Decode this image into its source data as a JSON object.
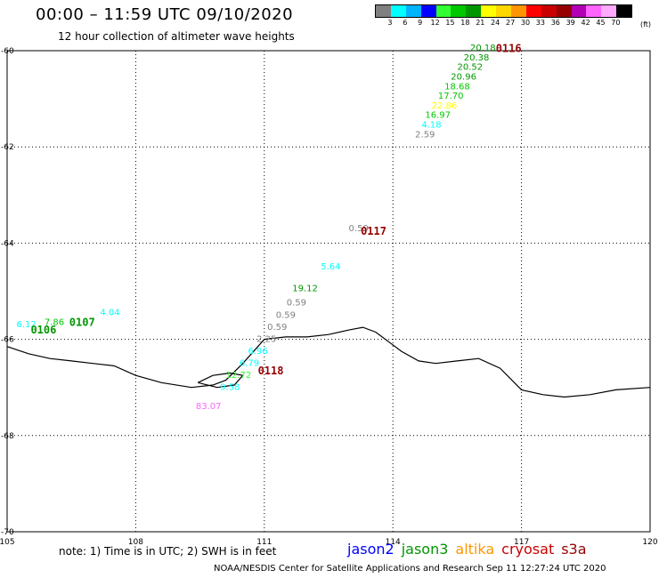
{
  "header": {
    "title": "00:00 – 11:59 UTC 09/10/2020",
    "subtitle": "12 hour collection of altimeter wave heights"
  },
  "legend": {
    "colors": [
      "#808080",
      "#00ffff",
      "#00b4ff",
      "#0000ff",
      "#32ff32",
      "#00c800",
      "#009600",
      "#ffff00",
      "#ffd700",
      "#ff9600",
      "#ff0000",
      "#c80000",
      "#960000",
      "#b400b4",
      "#ff64ff",
      "#ffaaff",
      "#000000"
    ],
    "labels": [
      "3",
      "6",
      "9",
      "12",
      "15",
      "18",
      "21",
      "24",
      "27",
      "30",
      "33",
      "36",
      "39",
      "42",
      "45",
      "70"
    ],
    "unit": "(ft)"
  },
  "chart_data": {
    "type": "scatter",
    "x_range": [
      105,
      120
    ],
    "y_range": [
      -60,
      -70
    ],
    "x_ticks": [
      105,
      108,
      111,
      114,
      117,
      120
    ],
    "y_ticks": [
      -60,
      -62,
      -64,
      -66,
      -68,
      -70
    ],
    "x_tick_labels": [
      "105",
      "108",
      "111",
      "114",
      "117",
      "120"
    ],
    "y_tick_labels": [
      "-60",
      "-62",
      "-64",
      "-66",
      "-68",
      "-70"
    ],
    "grid": true,
    "wave_heights": [
      {
        "lon": 116.1,
        "lat": -60.0,
        "value": "20.18",
        "color": "#009600"
      },
      {
        "lon": 115.95,
        "lat": -60.2,
        "value": "20.38",
        "color": "#009600"
      },
      {
        "lon": 115.8,
        "lat": -60.4,
        "value": "20.52",
        "color": "#009600"
      },
      {
        "lon": 115.65,
        "lat": -60.6,
        "value": "20.96",
        "color": "#009600"
      },
      {
        "lon": 115.5,
        "lat": -60.8,
        "value": "18.68",
        "color": "#00c800"
      },
      {
        "lon": 115.35,
        "lat": -61.0,
        "value": "17.70",
        "color": "#00c800"
      },
      {
        "lon": 115.2,
        "lat": -61.2,
        "value": "22.86",
        "color": "#ffff00"
      },
      {
        "lon": 115.05,
        "lat": -61.4,
        "value": "16.97",
        "color": "#00c800"
      },
      {
        "lon": 114.9,
        "lat": -61.6,
        "value": "4.18",
        "color": "#00ffff"
      },
      {
        "lon": 114.75,
        "lat": -61.8,
        "value": "2.59",
        "color": "#808080"
      },
      {
        "lon": 113.2,
        "lat": -63.75,
        "value": "0.59",
        "color": "#808080"
      },
      {
        "lon": 112.55,
        "lat": -64.55,
        "value": "5.64",
        "color": "#00ffff"
      },
      {
        "lon": 111.95,
        "lat": -65.0,
        "value": "19.12",
        "color": "#009600"
      },
      {
        "lon": 111.75,
        "lat": -65.3,
        "value": "0.59",
        "color": "#808080"
      },
      {
        "lon": 111.5,
        "lat": -65.55,
        "value": "0.59",
        "color": "#808080"
      },
      {
        "lon": 111.3,
        "lat": -65.8,
        "value": "0.59",
        "color": "#808080"
      },
      {
        "lon": 111.05,
        "lat": -66.05,
        "value": "2.25",
        "color": "#808080"
      },
      {
        "lon": 110.85,
        "lat": -66.3,
        "value": "6.96",
        "color": "#00ffff"
      },
      {
        "lon": 110.65,
        "lat": -66.55,
        "value": "6.79",
        "color": "#00ffff"
      },
      {
        "lon": 110.4,
        "lat": -66.8,
        "value": "12.72",
        "color": "#32ff32"
      },
      {
        "lon": 110.2,
        "lat": -67.05,
        "value": "9.58",
        "color": "#00ffff"
      },
      {
        "lon": 109.7,
        "lat": -67.45,
        "value": "83.07",
        "color": "#ff64ff"
      },
      {
        "lon": 105.45,
        "lat": -65.75,
        "value": "6.12",
        "color": "#00ffff"
      },
      {
        "lon": 106.1,
        "lat": -65.7,
        "value": "7.86",
        "color": "#00c800"
      },
      {
        "lon": 107.4,
        "lat": -65.5,
        "value": "4.04",
        "color": "#00ffff"
      }
    ],
    "passes": [
      {
        "lon": 116.7,
        "lat": -59.95,
        "label": "0116",
        "color": "#960000"
      },
      {
        "lon": 113.55,
        "lat": -63.75,
        "label": "0117",
        "color": "#960000"
      },
      {
        "lon": 111.15,
        "lat": -66.65,
        "label": "0118",
        "color": "#960000"
      },
      {
        "lon": 105.85,
        "lat": -65.8,
        "label": "0106",
        "color": "#009600"
      },
      {
        "lon": 106.75,
        "lat": -65.65,
        "label": "0107",
        "color": "#009600"
      }
    ],
    "coastline": [
      [
        105.0,
        -66.15
      ],
      [
        105.5,
        -66.3
      ],
      [
        106.0,
        -66.4
      ],
      [
        106.5,
        -66.45
      ],
      [
        107.0,
        -66.5
      ],
      [
        107.5,
        -66.55
      ],
      [
        108.0,
        -66.75
      ],
      [
        108.6,
        -66.9
      ],
      [
        109.3,
        -67.0
      ],
      [
        109.8,
        -66.95
      ],
      [
        110.1,
        -66.85
      ],
      [
        110.5,
        -66.5
      ],
      [
        111.0,
        -66.0
      ],
      [
        111.5,
        -65.95
      ],
      [
        112.0,
        -65.95
      ],
      [
        112.5,
        -65.9
      ],
      [
        113.0,
        -65.8
      ],
      [
        113.3,
        -65.75
      ],
      [
        113.6,
        -65.85
      ],
      [
        113.9,
        -66.05
      ],
      [
        114.2,
        -66.25
      ],
      [
        114.6,
        -66.45
      ],
      [
        115.0,
        -66.5
      ],
      [
        115.5,
        -66.45
      ],
      [
        116.0,
        -66.4
      ],
      [
        116.5,
        -66.6
      ],
      [
        117.0,
        -67.05
      ],
      [
        117.5,
        -67.15
      ],
      [
        118.0,
        -67.2
      ],
      [
        118.6,
        -67.15
      ],
      [
        119.2,
        -67.05
      ],
      [
        120.0,
        -67.0
      ]
    ],
    "coastline_island": [
      [
        109.45,
        -66.9
      ],
      [
        109.8,
        -66.75
      ],
      [
        110.2,
        -66.7
      ],
      [
        110.5,
        -66.75
      ],
      [
        110.3,
        -66.95
      ],
      [
        109.9,
        -67.0
      ],
      [
        109.45,
        -66.9
      ]
    ]
  },
  "footer": {
    "note": "note: 1) Time is in UTC; 2) SWH is in feet",
    "credit": "NOAA/NESDIS Center for Satellite Applications and Research    Sep 11 12:27:24 UTC 2020"
  },
  "satellites": [
    {
      "name": "jason2",
      "color": "#0000ff"
    },
    {
      "name": "jason3",
      "color": "#009600"
    },
    {
      "name": "altika",
      "color": "#ff9600"
    },
    {
      "name": "cryosat",
      "color": "#c80000"
    },
    {
      "name": "s3a",
      "color": "#960000"
    }
  ]
}
